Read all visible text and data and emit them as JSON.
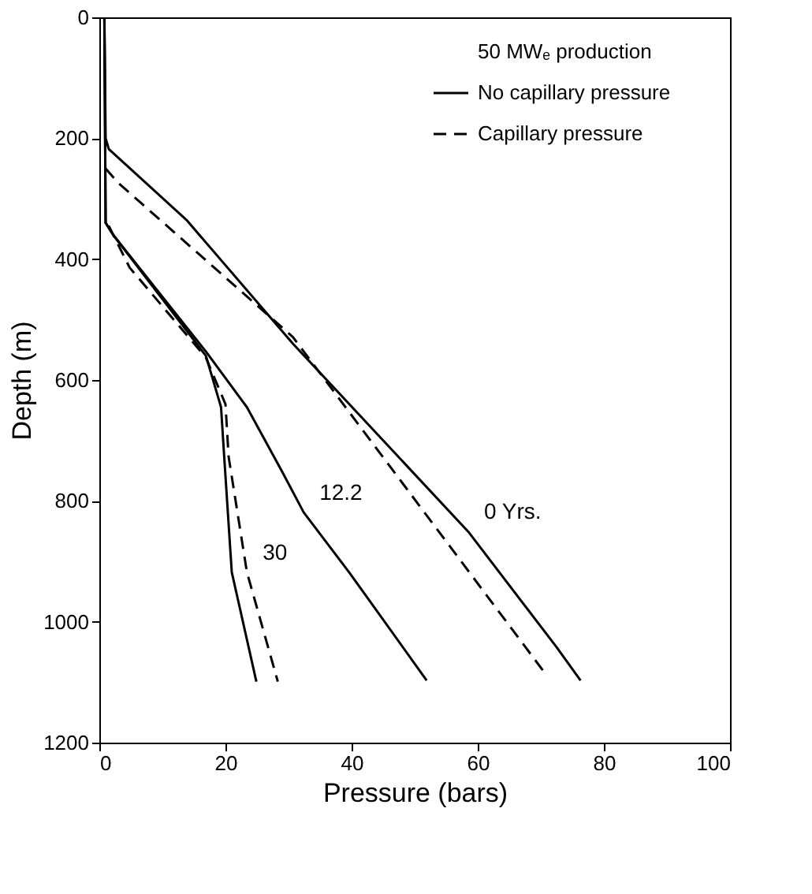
{
  "chart_data": {
    "type": "line",
    "xlabel": "Pressure (bars)",
    "ylabel": "Depth (m)",
    "legend_title": "50 MWₑ production",
    "legend": "top right",
    "grid": false,
    "xlim": [
      0,
      100
    ],
    "xticks": [
      0,
      20,
      40,
      60,
      80,
      100
    ],
    "ylim": [
      1200,
      0
    ],
    "yticks": [
      0,
      200,
      400,
      600,
      800,
      1000,
      1200
    ],
    "series": [
      {
        "name": "No capillary pressure",
        "color": "#000000",
        "line_style": "solid",
        "x": [
          0.8,
          1,
          1.5,
          13.8,
          30.7,
          58.5,
          72.5,
          76.3
        ],
        "values": [
          0,
          200,
          218,
          335,
          540,
          851,
          1042,
          1097
        ]
      },
      {
        "name": "Capillary pressure",
        "color": "#000000",
        "line_style": "dashed",
        "x": [
          1,
          2.9,
          30.7,
          70.8
        ],
        "values": [
          250,
          273,
          529,
          1087
        ]
      },
      {
        "color": "#000000",
        "line_style": "solid",
        "x": [
          0.8,
          1,
          2.2,
          16.9,
          23.4,
          29,
          32.4,
          39.6,
          51.9
        ],
        "values": [
          0,
          340,
          360,
          553,
          645,
          752,
          819,
          918,
          1097
        ]
      },
      {
        "color": "#000000",
        "line_style": "solid",
        "x": [
          0.8,
          1,
          2.2,
          16.9,
          19.3,
          19.8,
          21,
          24.9
        ],
        "values": [
          0,
          340,
          360,
          560,
          645,
          727,
          918,
          1099
        ]
      },
      {
        "color": "#000000",
        "line_style": "dashed",
        "x": [
          1.5,
          4.8,
          16.9,
          20,
          20.5,
          23.4,
          28.3
        ],
        "values": [
          345,
          414,
          563,
          640,
          727,
          918,
          1099
        ]
      }
    ],
    "annotations": [
      {
        "text": "0   Yrs.",
        "x": 58.5,
        "y": 851
      },
      {
        "text": "12.2",
        "x": 32.4,
        "y": 819
      },
      {
        "text": "30",
        "x": 23.4,
        "y": 918
      }
    ]
  }
}
